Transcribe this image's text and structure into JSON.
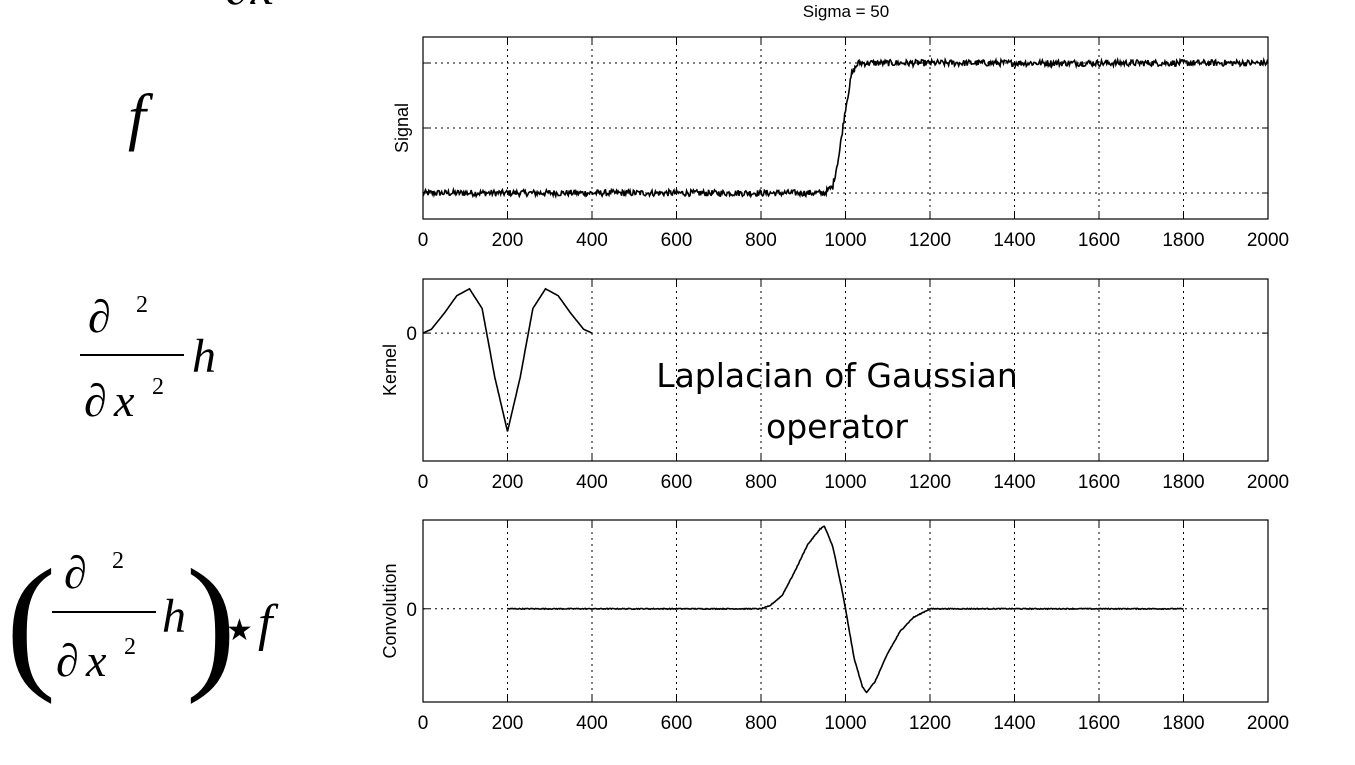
{
  "figure_title": "Sigma = 50",
  "annotation": [
    "Laplacian of Gaussian",
    "operator"
  ],
  "chart_data": [
    {
      "type": "line",
      "name": "signal",
      "title": "Sigma = 50",
      "xlabel": "",
      "ylabel": "Signal",
      "xlim": [
        0,
        2000
      ],
      "ylim": [
        -0.2,
        1.2
      ],
      "xticks": [
        0,
        200,
        400,
        600,
        800,
        1000,
        1200,
        1400,
        1600,
        1800,
        2000
      ],
      "yticks": [
        0,
        0.5,
        1
      ],
      "ytick_labels": [
        "",
        "",
        ""
      ],
      "grid": true,
      "series": [
        {
          "x": [
            0,
            950,
            970,
            985,
            1000,
            1015,
            1030,
            2000
          ],
          "y": [
            0,
            0,
            0.05,
            0.3,
            0.65,
            0.92,
            1,
            1
          ],
          "noise": 0.025
        }
      ]
    },
    {
      "type": "line",
      "name": "kernel",
      "title": "",
      "xlabel": "",
      "ylabel": "Kernel",
      "xlim": [
        0,
        2000
      ],
      "ylim": [
        -1.3,
        0.55
      ],
      "xticks": [
        0,
        200,
        400,
        600,
        800,
        1000,
        1200,
        1400,
        1600,
        1800,
        2000
      ],
      "xtick_labels": [
        "0",
        "200",
        "400",
        "600",
        "800",
        "1000",
        "1200",
        "1400",
        "1600",
        "1800",
        "2000"
      ],
      "yticks": [
        0
      ],
      "ytick_labels": [
        "0"
      ],
      "grid": true,
      "series": [
        {
          "x": [
            0,
            20,
            50,
            80,
            110,
            140,
            170,
            200,
            230,
            260,
            290,
            320,
            350,
            380,
            400
          ],
          "y": [
            0,
            0.04,
            0.2,
            0.38,
            0.45,
            0.25,
            -0.45,
            -1.0,
            -0.45,
            0.25,
            0.45,
            0.38,
            0.2,
            0.04,
            0
          ]
        }
      ]
    },
    {
      "type": "line",
      "name": "convolution",
      "title": "",
      "xlabel": "",
      "ylabel": "Convolution",
      "xlim": [
        0,
        2000
      ],
      "ylim": [
        -1.05,
        1.0
      ],
      "xticks": [
        0,
        200,
        400,
        600,
        800,
        1000,
        1200,
        1400,
        1600,
        1800,
        2000
      ],
      "xtick_labels": [
        "0",
        "200",
        "400",
        "600",
        "800",
        "1000",
        "1200",
        "1400",
        "1600",
        "1800",
        "2000"
      ],
      "yticks": [
        0
      ],
      "ytick_labels": [
        "0"
      ],
      "grid": true,
      "series": [
        {
          "x": [
            200,
            800,
            820,
            850,
            880,
            910,
            940,
            950,
            970,
            990,
            1000,
            1020,
            1040,
            1050,
            1070,
            1100,
            1130,
            1160,
            1200,
            1800
          ],
          "y": [
            0,
            0,
            0.03,
            0.15,
            0.42,
            0.72,
            0.9,
            0.93,
            0.7,
            0.25,
            0,
            -0.55,
            -0.88,
            -0.94,
            -0.82,
            -0.5,
            -0.25,
            -0.1,
            0,
            0
          ],
          "noise": 0.005
        }
      ]
    }
  ],
  "equations": {
    "f": "f",
    "partial": "∂",
    "sq": "2",
    "x": "x",
    "h": "h",
    "star": "★",
    "open_paren": "(",
    "close_paren": ")"
  }
}
